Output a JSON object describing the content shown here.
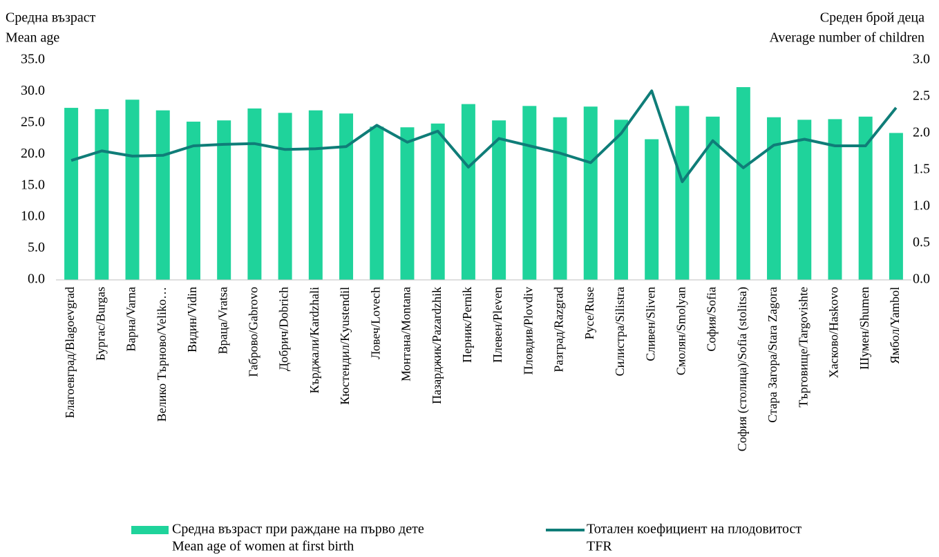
{
  "chart_data": {
    "type": "bar_line",
    "ylabel": [
      "Средна възраст",
      "Mean age"
    ],
    "y2label": [
      "Среден брой деца",
      "Average number of children"
    ],
    "categories": [
      "Благоевград/Blagoevgrad",
      "Бургас/Burgas",
      "Варна/Varna",
      "Велико Търново/Veliko…",
      "Видин/Vidin",
      "Враца/Vratsa",
      "Габрово/Gabrovo",
      "Добрич/Dobrich",
      "Кърджали/Kardzhali",
      "Кюстендил/Kyustendil",
      "Ловеч/Lovech",
      "Монтана/Montana",
      "Пазарджик/Pazardzhik",
      "Перник/Pernik",
      "Плевен/Pleven",
      "Пловдив/Plovdiv",
      "Разград/Razgrad",
      "Русе/Ruse",
      "Силистра/Silistra",
      "Сливен/Sliven",
      "Смолян/Smolyan",
      "София/Sofia",
      "София (столица)/Sofia (stolitsa)",
      "Стара Загора/Stara Zagora",
      "Търговище/Targovishte",
      "Хасково/Haskovo",
      "Шумен/Shumen",
      "Ямбол/Yambol"
    ],
    "series": [
      {
        "name": [
          "Средна възраст при раждане на първо дете",
          "Mean age of women at first birth"
        ],
        "type": "bar",
        "color": "#1fd39b",
        "values": [
          27.4,
          27.2,
          28.7,
          27.0,
          25.2,
          25.4,
          27.3,
          26.6,
          27.0,
          26.5,
          24.4,
          24.3,
          24.9,
          28.0,
          25.4,
          27.7,
          25.9,
          27.6,
          25.5,
          22.4,
          27.7,
          26.0,
          30.7,
          25.9,
          25.5,
          25.6,
          26.0,
          23.4
        ]
      },
      {
        "name": [
          "Тотален коефициент на плодовитост",
          "TFR"
        ],
        "type": "line",
        "axis": "y2",
        "color": "#0f7d78",
        "values": [
          1.63,
          1.76,
          1.69,
          1.7,
          1.83,
          1.85,
          1.86,
          1.78,
          1.79,
          1.82,
          2.11,
          1.88,
          2.03,
          1.54,
          1.93,
          1.83,
          1.73,
          1.6,
          2.0,
          2.58,
          1.34,
          1.9,
          1.53,
          1.84,
          1.92,
          1.83,
          1.83,
          2.35
        ]
      }
    ],
    "ylim": [
      0,
      35
    ],
    "yticks": [
      {
        "value": 0,
        "label": "0.0"
      },
      {
        "value": 5,
        "label": "5.0"
      },
      {
        "value": 10,
        "label": "10.0"
      },
      {
        "value": 15,
        "label": "15.0"
      },
      {
        "value": 20,
        "label": "20.0"
      },
      {
        "value": 25,
        "label": "25.0"
      },
      {
        "value": 30,
        "label": "30.0"
      },
      {
        "value": 35,
        "label": "35.0"
      }
    ],
    "y2lim": [
      0,
      3
    ],
    "y2ticks": [
      {
        "value": 0,
        "label": "0.0"
      },
      {
        "value": 0.5,
        "label": "0.5"
      },
      {
        "value": 1,
        "label": "1.0"
      },
      {
        "value": 1.5,
        "label": "1.5"
      },
      {
        "value": 2,
        "label": "2.0"
      },
      {
        "value": 2.5,
        "label": "2.5"
      },
      {
        "value": 3,
        "label": "3.0"
      }
    ],
    "grid": false,
    "legend": "bottom"
  }
}
